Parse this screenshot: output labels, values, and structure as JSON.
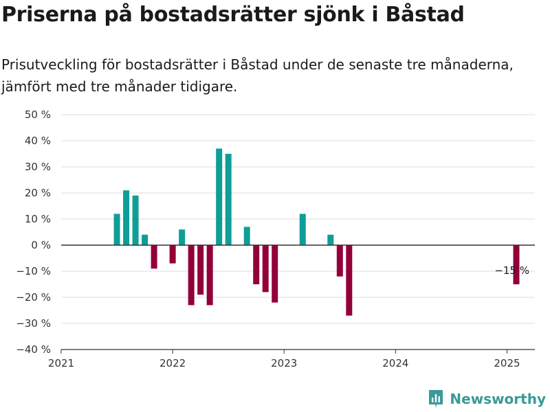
{
  "title": "Priserna på bostadsrätter sjönk i Båstad",
  "subtitle": "Prisutveckling för bostadsrätter i Båstad under de senaste tre månaderna, jämfört med tre månader tidigare.",
  "brand": "Newsworthy",
  "colors": {
    "positive": "#0e9e97",
    "negative": "#930039",
    "grid": "#dddddd",
    "zero_line": "#333333",
    "brand": "#3a9a95"
  },
  "chart_data": {
    "type": "bar",
    "title": "",
    "xlabel": "",
    "ylabel": "",
    "ylim": [
      -40,
      50
    ],
    "yticks": [
      -40,
      -30,
      -20,
      -10,
      0,
      10,
      20,
      30,
      40,
      50
    ],
    "ytick_labels": [
      "−40 %",
      "−30 %",
      "−20 %",
      "−10 %",
      "0 %",
      "10 %",
      "20 %",
      "30 %",
      "40 %",
      "50 %"
    ],
    "xlim": [
      "2021-01",
      "2025-04"
    ],
    "xtick_labels": [
      "2021",
      "2022",
      "2023",
      "2024",
      "2025"
    ],
    "grid": true,
    "series": [
      {
        "x": [
          "2021-07",
          "2021-08",
          "2021-09",
          "2021-10",
          "2021-11",
          "2022-01",
          "2022-02",
          "2022-03",
          "2022-04",
          "2022-05",
          "2022-06",
          "2022-07",
          "2022-09",
          "2022-10",
          "2022-11",
          "2022-12",
          "2023-03",
          "2023-06",
          "2023-07",
          "2023-08",
          "2025-02"
        ],
        "values": [
          12,
          21,
          19,
          4,
          -9,
          -7,
          6,
          -23,
          -19,
          -23,
          37,
          35,
          7,
          -15,
          -18,
          -22,
          12,
          4,
          -12,
          -27,
          -15
        ]
      }
    ],
    "annotations": [
      {
        "x": "2025-02",
        "text": "−15 %"
      }
    ]
  }
}
